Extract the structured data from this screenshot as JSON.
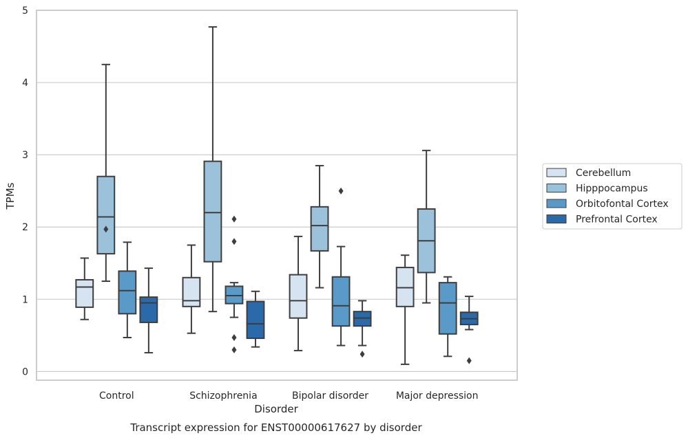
{
  "chart_data": {
    "type": "box",
    "title": "",
    "caption": "Transcript expression for ENST00000617627 by disorder",
    "xlabel": "Disorder",
    "ylabel": "TPMs",
    "ylim": [
      -0.12,
      5.0
    ],
    "yticks": [
      0,
      1,
      2,
      3,
      4,
      5
    ],
    "grid": true,
    "legend_position": "right",
    "categories": [
      "Control",
      "Schizophrenia",
      "Bipolar disorder",
      "Major depression"
    ],
    "series": [
      {
        "name": "Cerebellum",
        "color": "#d6e4f2",
        "boxes": [
          {
            "whislo": 0.72,
            "q1": 0.89,
            "med": 1.17,
            "q3": 1.27,
            "whishi": 1.57,
            "fliers": []
          },
          {
            "whislo": 0.53,
            "q1": 0.9,
            "med": 0.98,
            "q3": 1.3,
            "whishi": 1.75,
            "fliers": []
          },
          {
            "whislo": 0.29,
            "q1": 0.74,
            "med": 0.98,
            "q3": 1.34,
            "whishi": 1.87,
            "fliers": []
          },
          {
            "whislo": 0.1,
            "q1": 0.9,
            "med": 1.16,
            "q3": 1.44,
            "whishi": 1.61,
            "fliers": []
          }
        ]
      },
      {
        "name": "Hipppocampus",
        "color": "#9bc2da",
        "boxes": [
          {
            "whislo": 1.25,
            "q1": 1.63,
            "med": 2.14,
            "q3": 2.7,
            "whishi": 4.25,
            "fliers": [
              1.97
            ]
          },
          {
            "whislo": 0.83,
            "q1": 1.52,
            "med": 2.2,
            "q3": 2.91,
            "whishi": 4.77,
            "fliers": []
          },
          {
            "whislo": 1.16,
            "q1": 1.67,
            "med": 2.02,
            "q3": 2.28,
            "whishi": 2.85,
            "fliers": []
          },
          {
            "whislo": 0.95,
            "q1": 1.37,
            "med": 1.81,
            "q3": 2.25,
            "whishi": 3.06,
            "fliers": []
          }
        ]
      },
      {
        "name": "Orbitofontal Cortex",
        "color": "#5a9ac9",
        "boxes": [
          {
            "whislo": 0.47,
            "q1": 0.8,
            "med": 1.12,
            "q3": 1.39,
            "whishi": 1.79,
            "fliers": []
          },
          {
            "whislo": 0.75,
            "q1": 0.94,
            "med": 1.05,
            "q3": 1.18,
            "whishi": 1.23,
            "fliers": [
              2.11,
              1.8,
              0.47,
              0.3
            ]
          },
          {
            "whislo": 0.36,
            "q1": 0.63,
            "med": 0.91,
            "q3": 1.31,
            "whishi": 1.73,
            "fliers": [
              2.5
            ]
          },
          {
            "whislo": 0.21,
            "q1": 0.52,
            "med": 0.95,
            "q3": 1.23,
            "whishi": 1.31,
            "fliers": []
          }
        ]
      },
      {
        "name": "Prefrontal Cortex",
        "color": "#2a6aaa",
        "boxes": [
          {
            "whislo": 0.26,
            "q1": 0.68,
            "med": 0.95,
            "q3": 1.03,
            "whishi": 1.43,
            "fliers": []
          },
          {
            "whislo": 0.34,
            "q1": 0.46,
            "med": 0.66,
            "q3": 0.97,
            "whishi": 1.11,
            "fliers": []
          },
          {
            "whislo": 0.36,
            "q1": 0.63,
            "med": 0.74,
            "q3": 0.83,
            "whishi": 0.98,
            "fliers": [
              0.24
            ]
          },
          {
            "whislo": 0.58,
            "q1": 0.65,
            "med": 0.73,
            "q3": 0.82,
            "whishi": 1.04,
            "fliers": [
              0.15
            ]
          }
        ]
      }
    ]
  }
}
